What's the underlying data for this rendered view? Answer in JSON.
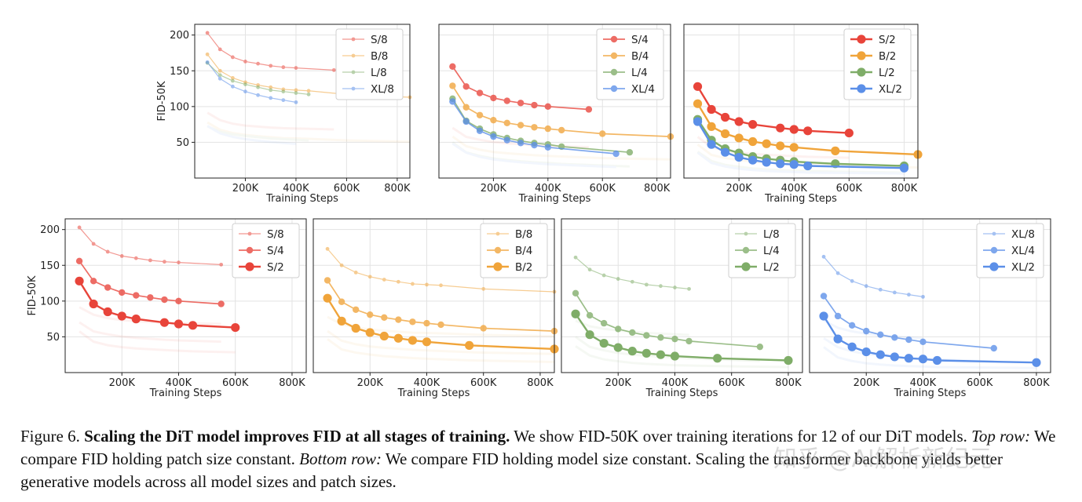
{
  "caption": {
    "figure_label": "Figure 6.",
    "bold_title": "Scaling the DiT model improves FID at all stages of training.",
    "text_1": "We show FID-50K over training iterations for 12 of our DiT models.",
    "top_row_label": "Top row:",
    "text_2": "We compare FID holding patch size constant.",
    "bottom_row_label": "Bottom row:",
    "text_3": "We compare FID holding model size constant. Scaling the transformer backbone yields better generative models across all model sizes and patch sizes."
  },
  "watermark": "知乎 @AI解析新纪元",
  "colors": {
    "S": "#e8443a",
    "B": "#f0a43a",
    "L": "#7fad68",
    "XL": "#5b8fe8"
  },
  "chart_data": [
    {
      "type": "line",
      "row": "top",
      "xlabel": "Training Steps",
      "ylabel": "FID-50K",
      "xlim": [
        0,
        850000
      ],
      "ylim": [
        0,
        215
      ],
      "xticks": [
        "200K",
        "400K",
        "600K",
        "800K"
      ],
      "yticks": [
        "50",
        "100",
        "150",
        "200"
      ],
      "legend": "top-right",
      "grid": true,
      "series": [
        {
          "name": "S/8",
          "color": "S",
          "patch": 8,
          "x": [
            50000,
            100000,
            150000,
            200000,
            250000,
            300000,
            350000,
            400000,
            550000
          ],
          "y": [
            203,
            180,
            169,
            163,
            160,
            157,
            155,
            154,
            151
          ]
        },
        {
          "name": "B/8",
          "color": "B",
          "patch": 8,
          "x": [
            50000,
            100000,
            150000,
            200000,
            250000,
            300000,
            350000,
            400000,
            450000,
            600000,
            850000
          ],
          "y": [
            173,
            150,
            140,
            134,
            130,
            127,
            124,
            123,
            122,
            117,
            113
          ]
        },
        {
          "name": "L/8",
          "color": "L",
          "patch": 8,
          "x": [
            50000,
            100000,
            150000,
            200000,
            250000,
            300000,
            350000,
            400000,
            450000
          ],
          "y": [
            161,
            144,
            136,
            131,
            127,
            123,
            121,
            119,
            117
          ]
        },
        {
          "name": "XL/8",
          "color": "XL",
          "patch": 8,
          "x": [
            50000,
            100000,
            150000,
            200000,
            250000,
            300000,
            350000,
            400000
          ],
          "y": [
            162,
            139,
            128,
            121,
            116,
            112,
            109,
            106
          ]
        }
      ]
    },
    {
      "type": "line",
      "row": "top",
      "xlabel": "Training Steps",
      "ylabel": "",
      "xlim": [
        0,
        850000
      ],
      "ylim": [
        0,
        215
      ],
      "xticks": [
        "200K",
        "400K",
        "600K",
        "800K"
      ],
      "yticks": [],
      "legend": "top-right",
      "grid": true,
      "series": [
        {
          "name": "S/4",
          "color": "S",
          "patch": 4,
          "x": [
            50000,
            100000,
            150000,
            200000,
            250000,
            300000,
            350000,
            400000,
            550000
          ],
          "y": [
            156,
            128,
            119,
            112,
            108,
            105,
            102,
            100,
            96
          ]
        },
        {
          "name": "B/4",
          "color": "B",
          "patch": 4,
          "x": [
            50000,
            100000,
            150000,
            200000,
            250000,
            300000,
            350000,
            400000,
            450000,
            600000,
            850000
          ],
          "y": [
            129,
            99,
            88,
            81,
            77,
            74,
            71,
            69,
            67,
            62,
            58
          ]
        },
        {
          "name": "L/4",
          "color": "L",
          "patch": 4,
          "x": [
            50000,
            100000,
            150000,
            200000,
            250000,
            300000,
            350000,
            400000,
            450000,
            700000
          ],
          "y": [
            111,
            80,
            69,
            61,
            56,
            52,
            49,
            47,
            44,
            36
          ]
        },
        {
          "name": "XL/4",
          "color": "XL",
          "patch": 4,
          "x": [
            50000,
            100000,
            150000,
            200000,
            250000,
            300000,
            350000,
            400000,
            650000
          ],
          "y": [
            107,
            79,
            66,
            58,
            53,
            49,
            46,
            43,
            34
          ]
        }
      ]
    },
    {
      "type": "line",
      "row": "top",
      "xlabel": "Training Steps",
      "ylabel": "",
      "xlim": [
        0,
        850000
      ],
      "ylim": [
        0,
        215
      ],
      "xticks": [
        "200K",
        "400K",
        "600K",
        "800K"
      ],
      "yticks": [],
      "legend": "top-right",
      "grid": true,
      "series": [
        {
          "name": "S/2",
          "color": "S",
          "patch": 2,
          "x": [
            50000,
            100000,
            150000,
            200000,
            250000,
            350000,
            400000,
            450000,
            600000
          ],
          "y": [
            128,
            96,
            85,
            79,
            75,
            70,
            68,
            66,
            63
          ]
        },
        {
          "name": "B/2",
          "color": "B",
          "patch": 2,
          "x": [
            50000,
            100000,
            150000,
            200000,
            250000,
            300000,
            350000,
            400000,
            550000,
            850000
          ],
          "y": [
            104,
            72,
            62,
            56,
            51,
            48,
            45,
            43,
            38,
            33
          ]
        },
        {
          "name": "L/2",
          "color": "L",
          "patch": 2,
          "x": [
            50000,
            100000,
            150000,
            200000,
            250000,
            300000,
            350000,
            400000,
            550000,
            800000
          ],
          "y": [
            82,
            53,
            41,
            35,
            30,
            27,
            25,
            23,
            20,
            17
          ]
        },
        {
          "name": "XL/2",
          "color": "XL",
          "patch": 2,
          "x": [
            50000,
            100000,
            150000,
            200000,
            250000,
            300000,
            350000,
            400000,
            450000,
            800000
          ],
          "y": [
            79,
            47,
            36,
            29,
            25,
            22,
            20,
            19,
            17,
            14
          ]
        }
      ]
    },
    {
      "type": "line",
      "row": "bottom",
      "xlabel": "Training Steps",
      "ylabel": "FID-50K",
      "xlim": [
        0,
        850000
      ],
      "ylim": [
        0,
        215
      ],
      "xticks": [
        "200K",
        "400K",
        "600K",
        "800K"
      ],
      "yticks": [
        "50",
        "100",
        "150",
        "200"
      ],
      "legend": "top-right",
      "grid": true,
      "series": [
        {
          "name": "S/8",
          "color": "S",
          "patch": 8,
          "x": [
            50000,
            100000,
            150000,
            200000,
            250000,
            300000,
            350000,
            400000,
            550000
          ],
          "y": [
            203,
            180,
            169,
            163,
            160,
            157,
            155,
            154,
            151
          ]
        },
        {
          "name": "S/4",
          "color": "S",
          "patch": 4,
          "x": [
            50000,
            100000,
            150000,
            200000,
            250000,
            300000,
            350000,
            400000,
            550000
          ],
          "y": [
            156,
            128,
            119,
            112,
            108,
            105,
            102,
            100,
            96
          ]
        },
        {
          "name": "S/2",
          "color": "S",
          "patch": 2,
          "x": [
            50000,
            100000,
            150000,
            200000,
            250000,
            350000,
            400000,
            450000,
            600000
          ],
          "y": [
            128,
            96,
            85,
            79,
            75,
            70,
            68,
            66,
            63
          ]
        }
      ]
    },
    {
      "type": "line",
      "row": "bottom",
      "xlabel": "Training Steps",
      "ylabel": "",
      "xlim": [
        0,
        850000
      ],
      "ylim": [
        0,
        215
      ],
      "xticks": [
        "200K",
        "400K",
        "600K",
        "800K"
      ],
      "yticks": [],
      "legend": "top-right",
      "grid": true,
      "series": [
        {
          "name": "B/8",
          "color": "B",
          "patch": 8,
          "x": [
            50000,
            100000,
            150000,
            200000,
            250000,
            300000,
            350000,
            400000,
            450000,
            600000,
            850000
          ],
          "y": [
            173,
            150,
            140,
            134,
            130,
            127,
            124,
            123,
            122,
            117,
            113
          ]
        },
        {
          "name": "B/4",
          "color": "B",
          "patch": 4,
          "x": [
            50000,
            100000,
            150000,
            200000,
            250000,
            300000,
            350000,
            400000,
            450000,
            600000,
            850000
          ],
          "y": [
            129,
            99,
            88,
            81,
            77,
            74,
            71,
            69,
            67,
            62,
            58
          ]
        },
        {
          "name": "B/2",
          "color": "B",
          "patch": 2,
          "x": [
            50000,
            100000,
            150000,
            200000,
            250000,
            300000,
            350000,
            400000,
            550000,
            850000
          ],
          "y": [
            104,
            72,
            62,
            56,
            51,
            48,
            45,
            43,
            38,
            33
          ]
        }
      ]
    },
    {
      "type": "line",
      "row": "bottom",
      "xlabel": "Training Steps",
      "ylabel": "",
      "xlim": [
        0,
        850000
      ],
      "ylim": [
        0,
        215
      ],
      "xticks": [
        "200K",
        "400K",
        "600K",
        "800K"
      ],
      "yticks": [],
      "legend": "top-right",
      "grid": true,
      "series": [
        {
          "name": "L/8",
          "color": "L",
          "patch": 8,
          "x": [
            50000,
            100000,
            150000,
            200000,
            250000,
            300000,
            350000,
            400000,
            450000
          ],
          "y": [
            161,
            144,
            136,
            131,
            127,
            123,
            121,
            119,
            117
          ]
        },
        {
          "name": "L/4",
          "color": "L",
          "patch": 4,
          "x": [
            50000,
            100000,
            150000,
            200000,
            250000,
            300000,
            350000,
            400000,
            450000,
            700000
          ],
          "y": [
            111,
            80,
            69,
            61,
            56,
            52,
            49,
            47,
            44,
            36
          ]
        },
        {
          "name": "L/2",
          "color": "L",
          "patch": 2,
          "x": [
            50000,
            100000,
            150000,
            200000,
            250000,
            300000,
            350000,
            400000,
            550000,
            800000
          ],
          "y": [
            82,
            53,
            41,
            35,
            30,
            27,
            25,
            23,
            20,
            17
          ]
        }
      ]
    },
    {
      "type": "line",
      "row": "bottom",
      "xlabel": "Training Steps",
      "ylabel": "",
      "xlim": [
        0,
        850000
      ],
      "ylim": [
        0,
        215
      ],
      "xticks": [
        "200K",
        "400K",
        "600K",
        "800K"
      ],
      "yticks": [],
      "legend": "top-right",
      "grid": true,
      "series": [
        {
          "name": "XL/8",
          "color": "XL",
          "patch": 8,
          "x": [
            50000,
            100000,
            150000,
            200000,
            250000,
            300000,
            350000,
            400000
          ],
          "y": [
            162,
            139,
            128,
            121,
            116,
            112,
            109,
            106
          ]
        },
        {
          "name": "XL/4",
          "color": "XL",
          "patch": 4,
          "x": [
            50000,
            100000,
            150000,
            200000,
            250000,
            300000,
            350000,
            400000,
            650000
          ],
          "y": [
            107,
            79,
            66,
            58,
            53,
            49,
            46,
            43,
            34
          ]
        },
        {
          "name": "XL/2",
          "color": "XL",
          "patch": 2,
          "x": [
            50000,
            100000,
            150000,
            200000,
            250000,
            300000,
            350000,
            400000,
            450000,
            800000
          ],
          "y": [
            79,
            47,
            36,
            29,
            25,
            22,
            20,
            19,
            17,
            14
          ]
        }
      ]
    }
  ]
}
